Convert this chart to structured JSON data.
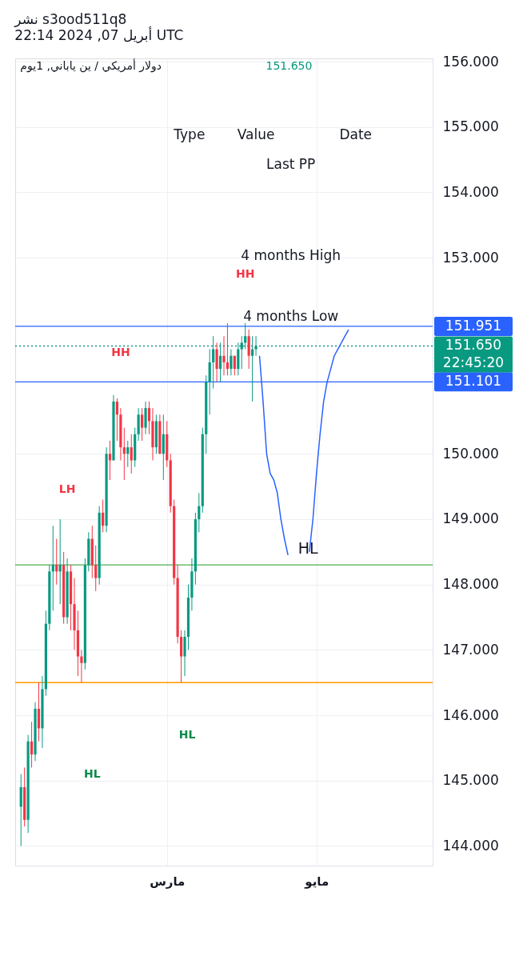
{
  "chart_data": {
    "type": "candlestick",
    "title": "نشر s3ood511q8",
    "subtitle": "أبريل 07, 2024 22:14 UTC",
    "categories": [
      null,
      null,
      null,
      null,
      null,
      null,
      null,
      null,
      null,
      null,
      null,
      null,
      null,
      null,
      null,
      null,
      null,
      null,
      null,
      null,
      null,
      null,
      null,
      null,
      null,
      null,
      null,
      null,
      null,
      null,
      null,
      null,
      null,
      null,
      null,
      null,
      null,
      null,
      null,
      null,
      null,
      "مارس",
      null,
      null,
      null,
      null,
      null,
      null,
      null,
      null,
      null,
      null,
      null,
      null,
      null,
      null,
      null,
      null,
      null,
      null,
      null,
      null,
      null,
      null,
      null,
      null,
      null,
      null,
      null,
      null,
      null,
      null,
      null,
      null,
      null,
      null,
      null,
      null,
      null,
      null,
      null,
      null,
      null,
      "مايو",
      null,
      null,
      null,
      null,
      null,
      null,
      null,
      null,
      null,
      null,
      null,
      null,
      null,
      null,
      null,
      null,
      null,
      null,
      null,
      null,
      null,
      null,
      null,
      null,
      null,
      null,
      null,
      null,
      null,
      null,
      null
    ],
    "ohlc": [
      [
        144.6,
        145.1,
        144.0,
        144.9
      ],
      [
        144.9,
        145.2,
        144.3,
        144.4
      ],
      [
        144.4,
        145.7,
        144.2,
        145.6
      ],
      [
        145.6,
        145.9,
        145.2,
        145.4
      ],
      [
        145.4,
        146.2,
        145.3,
        146.1
      ],
      [
        146.1,
        146.5,
        145.6,
        145.8
      ],
      [
        145.8,
        146.6,
        145.5,
        146.4
      ],
      [
        146.4,
        147.6,
        146.3,
        147.4
      ],
      [
        147.4,
        148.3,
        147.3,
        148.2
      ],
      [
        148.2,
        148.9,
        147.6,
        148.3
      ],
      [
        148.3,
        148.7,
        148.0,
        148.2
      ],
      [
        148.2,
        149.0,
        147.7,
        148.3
      ],
      [
        148.3,
        148.5,
        147.4,
        147.5
      ],
      [
        147.5,
        148.4,
        147.4,
        148.2
      ],
      [
        148.2,
        148.3,
        147.3,
        147.7
      ],
      [
        147.7,
        148.1,
        147.0,
        147.3
      ],
      [
        147.3,
        147.6,
        146.6,
        146.9
      ],
      [
        146.9,
        147.0,
        146.5,
        146.8
      ],
      [
        146.8,
        148.4,
        146.7,
        148.3
      ],
      [
        148.3,
        148.8,
        148.2,
        148.7
      ],
      [
        148.7,
        148.9,
        148.1,
        148.3
      ],
      [
        148.3,
        148.6,
        147.9,
        148.1
      ],
      [
        148.1,
        149.2,
        148.0,
        149.1
      ],
      [
        149.1,
        149.3,
        148.8,
        148.9
      ],
      [
        148.9,
        150.1,
        148.8,
        150.0
      ],
      [
        150.0,
        150.2,
        149.6,
        149.9
      ],
      [
        149.9,
        150.9,
        149.9,
        150.8
      ],
      [
        150.8,
        150.85,
        150.2,
        150.6
      ],
      [
        150.6,
        150.7,
        149.9,
        150.1
      ],
      [
        150.1,
        150.4,
        149.6,
        150.0
      ],
      [
        150.0,
        150.2,
        149.8,
        150.1
      ],
      [
        150.1,
        150.3,
        149.7,
        149.9
      ],
      [
        149.9,
        150.4,
        149.8,
        150.3
      ],
      [
        150.3,
        150.7,
        150.2,
        150.6
      ],
      [
        150.6,
        150.7,
        150.2,
        150.4
      ],
      [
        150.4,
        150.8,
        150.3,
        150.7
      ],
      [
        150.7,
        150.8,
        150.3,
        150.5
      ],
      [
        150.5,
        150.7,
        149.9,
        150.1
      ],
      [
        150.1,
        150.6,
        150.0,
        150.5
      ],
      [
        150.5,
        150.6,
        150.0,
        150.0
      ],
      [
        150.0,
        150.6,
        149.6,
        150.3
      ],
      [
        150.3,
        150.5,
        149.8,
        149.9
      ],
      [
        149.9,
        150.0,
        149.1,
        149.2
      ],
      [
        149.2,
        149.3,
        148.0,
        148.1
      ],
      [
        148.1,
        148.3,
        147.1,
        147.2
      ],
      [
        147.2,
        147.3,
        146.5,
        146.9
      ],
      [
        146.9,
        147.3,
        146.6,
        147.2
      ],
      [
        147.2,
        148.0,
        147.0,
        147.8
      ],
      [
        147.8,
        148.4,
        147.6,
        148.2
      ],
      [
        148.2,
        149.1,
        148.0,
        149.0
      ],
      [
        149.0,
        149.4,
        148.8,
        149.2
      ],
      [
        149.2,
        150.4,
        149.1,
        150.3
      ],
      [
        150.3,
        151.2,
        150.0,
        151.1
      ],
      [
        151.1,
        151.6,
        150.6,
        151.4
      ],
      [
        151.4,
        151.8,
        151.0,
        151.6
      ],
      [
        151.6,
        151.7,
        151.1,
        151.3
      ],
      [
        151.3,
        151.7,
        151.1,
        151.5
      ],
      [
        151.5,
        151.8,
        151.2,
        151.4
      ],
      [
        151.4,
        152.0,
        151.2,
        151.3
      ],
      [
        151.3,
        151.6,
        151.2,
        151.5
      ],
      [
        151.5,
        151.5,
        151.2,
        151.3
      ],
      [
        151.3,
        151.7,
        151.2,
        151.6
      ],
      [
        151.6,
        151.8,
        151.3,
        151.7
      ],
      [
        151.7,
        152.0,
        151.6,
        151.8
      ],
      [
        151.8,
        151.9,
        151.3,
        151.5
      ],
      [
        151.5,
        151.8,
        150.8,
        151.6
      ],
      [
        151.6,
        151.8,
        151.5,
        151.65
      ],
      null,
      null,
      null,
      null,
      null,
      null,
      null,
      null,
      null,
      null,
      null,
      null,
      null,
      null,
      null,
      null,
      null,
      null,
      null,
      null,
      null,
      null,
      null,
      null,
      null,
      null,
      null,
      null,
      null,
      null,
      null,
      null,
      null,
      null,
      null,
      null,
      null,
      null,
      null,
      null,
      null,
      null,
      null,
      null,
      null,
      null,
      null,
      null
    ],
    "colors": [
      "#089981",
      "#f23645",
      "#089981",
      "#f23645",
      "#089981",
      "#f23645",
      "#089981",
      "#089981",
      "#089981",
      "#089981",
      "#f23645",
      "#089981",
      "#f23645",
      "#089981",
      "#f23645",
      "#f23645",
      "#f23645",
      "#f23645",
      "#089981",
      "#089981",
      "#f23645",
      "#f23645",
      "#089981",
      "#f23645",
      "#089981",
      "#f23645",
      "#089981",
      "#f23645",
      "#f23645",
      "#f23645",
      "#089981",
      "#f23645",
      "#089981",
      "#089981",
      "#f23645",
      "#089981",
      "#f23645",
      "#f23645",
      "#089981",
      "#f23645",
      "#089981",
      "#f23645",
      "#f23645",
      "#f23645",
      "#f23645",
      "#f23645",
      "#089981",
      "#089981",
      "#089981",
      "#089981",
      "#089981",
      "#089981",
      "#089981",
      "#089981",
      "#089981",
      "#f23645",
      "#089981",
      "#f23645",
      "#f23645",
      "#089981",
      "#f23645",
      "#089981",
      "#089981",
      "#089981",
      "#f23645",
      "#089981",
      "#089981",
      null,
      null,
      null,
      null,
      null,
      null,
      null,
      null,
      null,
      null,
      null,
      null,
      null,
      null,
      null,
      null,
      null,
      null,
      null,
      null,
      null,
      null,
      null,
      null,
      null,
      null,
      null,
      null,
      null,
      null,
      null,
      null,
      null,
      null,
      null,
      null,
      null,
      null,
      null,
      null,
      null,
      null,
      null,
      null,
      null,
      null,
      null,
      null
    ],
    "series": [
      {
        "type": "line",
        "color": "#2962ff",
        "values": [
          null,
          null,
          null,
          null,
          null,
          null,
          null,
          null,
          null,
          null,
          null,
          null,
          null,
          null,
          null,
          null,
          null,
          null,
          null,
          null,
          null,
          null,
          null,
          null,
          null,
          null,
          null,
          null,
          null,
          null,
          null,
          null,
          null,
          null,
          null,
          null,
          null,
          null,
          null,
          null,
          null,
          null,
          null,
          null,
          null,
          null,
          null,
          null,
          null,
          null,
          null,
          null,
          null,
          null,
          null,
          null,
          null,
          null,
          null,
          null,
          null,
          null,
          null,
          null,
          null,
          null,
          null,
          151.5,
          150.8,
          150.0,
          149.7,
          149.6,
          149.4,
          149.0,
          148.7,
          148.45,
          null,
          null,
          null,
          null,
          null,
          148.5,
          149.0,
          149.7,
          150.3,
          150.8,
          151.1,
          151.3,
          151.5,
          151.6,
          151.7,
          151.8,
          151.9,
          null,
          null,
          null,
          null,
          null,
          null,
          null,
          null,
          null,
          null,
          null,
          null,
          null,
          null,
          null,
          null,
          null,
          null,
          null,
          null,
          null,
          null
        ]
      }
    ],
    "ylim": [
      143.7,
      156.05
    ],
    "yticks": [
      {
        "value": 144,
        "label": "144.000"
      },
      {
        "value": 145,
        "label": "145.000"
      },
      {
        "value": 146,
        "label": "146.000"
      },
      {
        "value": 147,
        "label": "147.000"
      },
      {
        "value": 148,
        "label": "148.000"
      },
      {
        "value": 149,
        "label": "149.000"
      },
      {
        "value": 150,
        "label": "150.000"
      },
      {
        "value": 153,
        "label": "153.000"
      },
      {
        "value": 154,
        "label": "154.000"
      },
      {
        "value": 155,
        "label": "155.000"
      },
      {
        "value": 156,
        "label": "156.000"
      }
    ],
    "ref_lines": [
      {
        "axis": "y",
        "value": 151.951,
        "label": "151.951",
        "color": "#2962ff"
      },
      {
        "axis": "y",
        "value": 151.101,
        "label": "151.101",
        "color": "#2962ff"
      },
      {
        "axis": "y",
        "value": 151.65,
        "label": "151.650",
        "color": "#089981",
        "line_style": "dotted"
      },
      {
        "axis": "y",
        "value": 148.3,
        "color": "#4caf50"
      },
      {
        "axis": "y",
        "value": 146.5,
        "color": "#ff9800"
      }
    ],
    "annotations": [
      "دولار أمريكي / ين ياباني, 1يوم",
      "151.650",
      "Type",
      "Value",
      "Date",
      "Last PP",
      "4 months High",
      "4 months Low",
      "HH",
      "LH",
      "HL",
      "HL",
      "HH",
      "HL",
      "22:45:20"
    ],
    "grid": true
  }
}
